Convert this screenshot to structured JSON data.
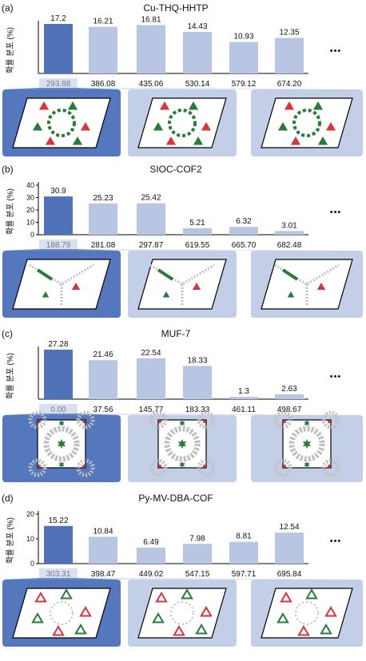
{
  "colors": {
    "highlight_bar": "#4f72b8",
    "other_bar": "#b9c6e3",
    "highlight_panel": "#5577bd",
    "other_panel": "#c3cfe7",
    "green": "#2a7a3a",
    "red": "#d8343e",
    "grey": "#bfbfbf"
  },
  "ellipsis": "•••",
  "chart_data": [
    {
      "type": "bar",
      "panel_label": "(a)",
      "title": "Cu-THQ-HHTP",
      "ylabel": "확률 분포 (%)",
      "show_y_ticks": false,
      "ylim": [
        0,
        17.2
      ],
      "categories": [
        "293.88",
        "386.08",
        "435.06",
        "530.14",
        "579.12",
        "674.20"
      ],
      "values": [
        17.2,
        16.21,
        16.81,
        14.43,
        10.93,
        12.35
      ],
      "value_labels": [
        "17.2",
        "16.21",
        "16.81",
        "14.43",
        "10.93",
        "12.35"
      ],
      "highlight_index": 0,
      "structure": "hex-triangle"
    },
    {
      "type": "bar",
      "panel_label": "(b)",
      "title": "SIOC-COF2",
      "ylabel": "확률 분포 (%)",
      "show_y_ticks": true,
      "y_ticks": [
        "0",
        "10",
        "20",
        "30",
        "40"
      ],
      "ylim": [
        0,
        40
      ],
      "categories": [
        "188.79",
        "281.08",
        "297.87",
        "619.55",
        "665.70",
        "682.48"
      ],
      "values": [
        30.9,
        25.23,
        25.42,
        5.21,
        6.32,
        3.01
      ],
      "value_labels": [
        "30.9",
        "25.23",
        "25.42",
        "5.21",
        "6.32",
        "3.01"
      ],
      "highlight_index": 0,
      "structure": "kagome-chain"
    },
    {
      "type": "bar",
      "panel_label": "(c)",
      "title": "MUF-7",
      "ylabel": "확률 분포 (%)",
      "show_y_ticks": false,
      "ylim": [
        0,
        27.28
      ],
      "categories": [
        "0.00",
        "37.56",
        "145.77",
        "183.33",
        "461.11",
        "498.67"
      ],
      "values": [
        27.28,
        21.46,
        22.54,
        18.33,
        1.3,
        2.63
      ],
      "value_labels": [
        "27.28",
        "21.46",
        "22.54",
        "18.33",
        "1.3",
        "2.63"
      ],
      "highlight_index": 0,
      "structure": "square-mof"
    },
    {
      "type": "bar",
      "panel_label": "(d)",
      "title": "Py-MV-DBA-COF",
      "ylabel": "확률 분포 (%)",
      "show_y_ticks": true,
      "y_ticks": [
        "0",
        "10",
        "20"
      ],
      "ylim": [
        0,
        20
      ],
      "categories": [
        "303.31",
        "398.47",
        "449.02",
        "547.15",
        "597.71",
        "695.84"
      ],
      "values": [
        15.22,
        10.84,
        6.49,
        7.98,
        8.81,
        12.54
      ],
      "value_labels": [
        "15.22",
        "10.84",
        "6.49",
        "7.98",
        "8.81",
        "12.54"
      ],
      "highlight_index": 0,
      "structure": "triangle-ring"
    }
  ]
}
